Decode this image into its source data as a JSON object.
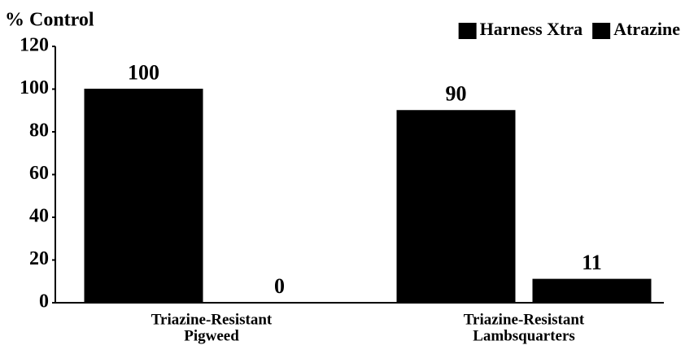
{
  "chart_data": {
    "type": "bar",
    "y_label": "% Control",
    "categories": [
      [
        "Triazine-Resistant",
        "Pigweed"
      ],
      [
        "Triazine-Resistant",
        "Lambsquarters"
      ]
    ],
    "series": [
      {
        "name": "Harness Xtra",
        "color": "#000000",
        "values": [
          100,
          90
        ]
      },
      {
        "name": "Atrazine",
        "color": "#000000",
        "values": [
          0,
          11
        ]
      }
    ],
    "ylim": [
      0,
      120
    ],
    "yticks": [
      0,
      20,
      40,
      60,
      80,
      100,
      120
    ],
    "grid": false,
    "legend": "top-right",
    "show_value_labels": true
  }
}
